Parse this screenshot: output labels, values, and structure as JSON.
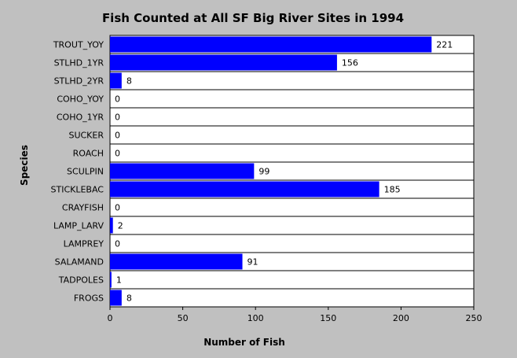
{
  "chart_data": {
    "type": "bar",
    "orientation": "horizontal",
    "title": "Fish Counted at All SF Big River Sites in 1994",
    "xlabel": "Number of Fish",
    "ylabel": "Species",
    "xlim": [
      0,
      250
    ],
    "x_ticks": [
      "0",
      "50",
      "100",
      "150",
      "200",
      "250"
    ],
    "grid": "horizontal lines between categories",
    "bar_color": "#0000ff",
    "background_color": "#c0c0c0",
    "plot_color": "#ffffff",
    "categories": [
      "TROUT_YOY",
      "STLHD_1YR",
      "STLHD_2YR",
      "COHO_YOY",
      "COHO_1YR",
      "SUCKER",
      "ROACH",
      "SCULPIN",
      "STICKLEBAC",
      "CRAYFISH",
      "LAMP_LARV",
      "LAMPREY",
      "SALAMAND",
      "TADPOLES",
      "FROGS"
    ],
    "values": [
      221,
      156,
      8,
      0,
      0,
      0,
      0,
      99,
      185,
      0,
      2,
      0,
      91,
      1,
      8
    ]
  }
}
